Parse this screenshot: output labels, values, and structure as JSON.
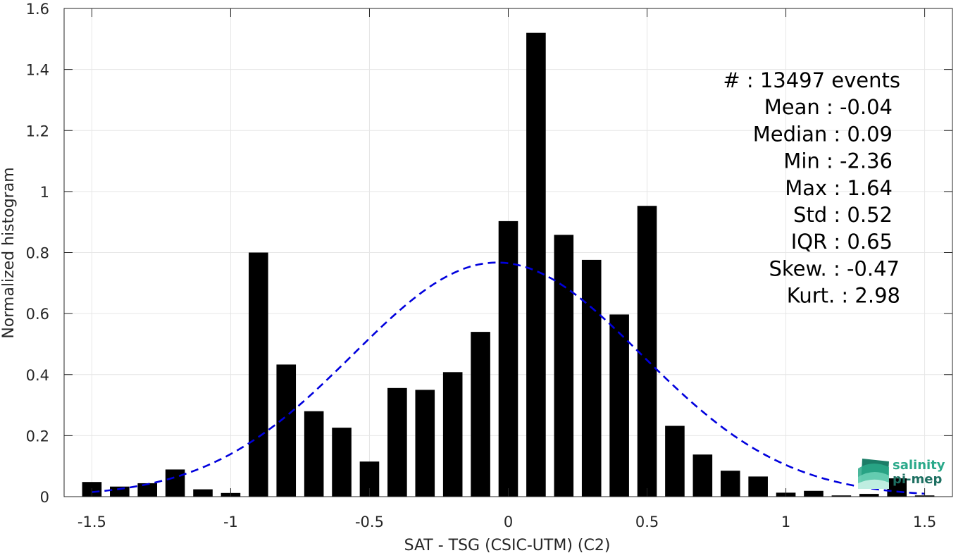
{
  "chart_data": {
    "type": "bar",
    "title": "",
    "xlabel": "SAT - TSG (CSIC-UTM) (C2)",
    "ylabel": "Normalized histogram",
    "xlim": [
      -1.6,
      1.6
    ],
    "ylim": [
      0,
      1.6
    ],
    "grid": true,
    "xticks": [
      -1.5,
      -1,
      -0.5,
      0,
      0.5,
      1,
      1.5
    ],
    "xtick_labels": [
      "-1.5",
      "-1",
      "-0.5",
      "0",
      "0.5",
      "1",
      "1.5"
    ],
    "yticks": [
      0,
      0.2,
      0.4,
      0.6,
      0.8,
      1,
      1.2,
      1.4,
      1.6
    ],
    "ytick_labels": [
      "0",
      "0.2",
      "0.4",
      "0.6",
      "0.8",
      "1",
      "1.2",
      "1.4",
      "1.6"
    ],
    "bar_width": 0.07,
    "bar_color": "#000000",
    "x": [
      -1.5,
      -1.4,
      -1.3,
      -1.2,
      -1.1,
      -1.0,
      -0.9,
      -0.8,
      -0.7,
      -0.6,
      -0.5,
      -0.4,
      -0.3,
      -0.2,
      -0.1,
      0.0,
      0.1,
      0.2,
      0.3,
      0.4,
      0.5,
      0.6,
      0.7,
      0.8,
      0.9,
      1.0,
      1.1,
      1.2,
      1.3,
      1.4,
      1.5
    ],
    "values": [
      0.048,
      0.033,
      0.044,
      0.089,
      0.024,
      0.012,
      0.8,
      0.433,
      0.28,
      0.226,
      0.115,
      0.356,
      0.35,
      0.408,
      0.54,
      0.903,
      1.52,
      0.858,
      0.776,
      0.597,
      0.953,
      0.232,
      0.138,
      0.085,
      0.066,
      0.013,
      0.019,
      0.004,
      0.009,
      0.06,
      0.004
    ],
    "fit_curve": {
      "type": "gaussian",
      "mean": -0.04,
      "std": 0.52,
      "color": "#0000dd",
      "style": "dashed",
      "x_range": [
        -1.5,
        1.5
      ]
    },
    "annotation": {
      "placement": "top-right",
      "lines": [
        "#  : 13497 events",
        "Mean : -0.04",
        "Median : 0.09",
        "Min : -2.36",
        "Max : 1.64",
        "Std : 0.52",
        "IQR : 0.65",
        "Skew. : -0.47",
        "Kurt. : 2.98"
      ]
    }
  },
  "logo": {
    "line1": "salinity",
    "line2": "pi-mep",
    "color1": "#2aa98a",
    "color2": "#1d6f61"
  }
}
